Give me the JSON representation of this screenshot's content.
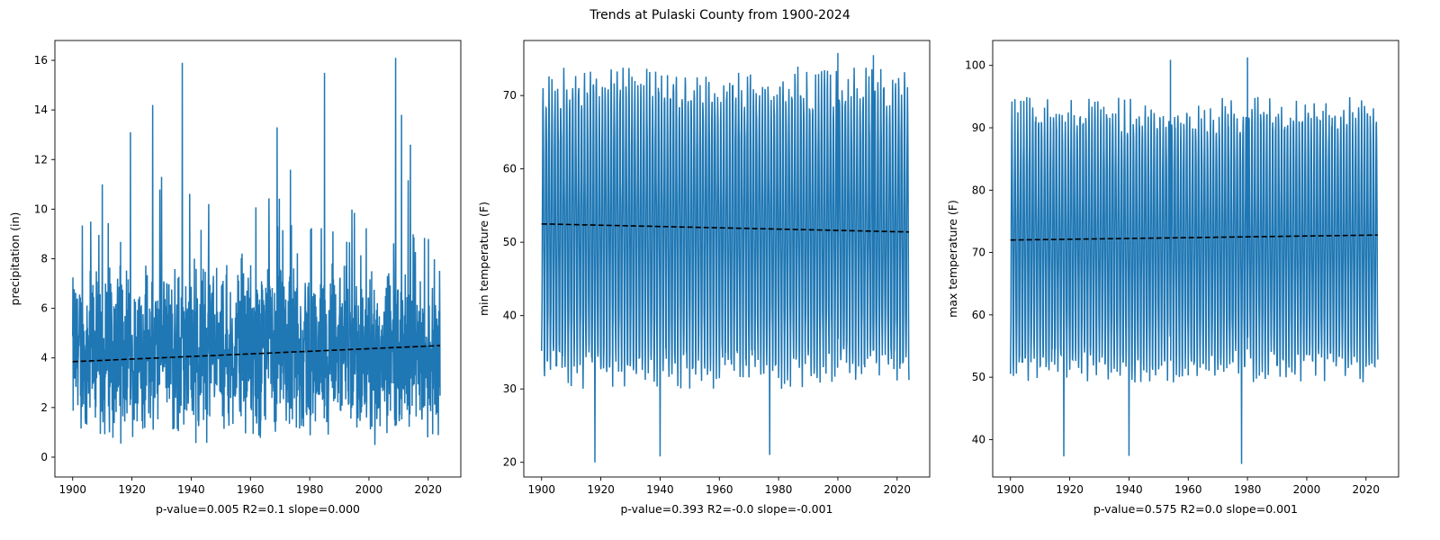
{
  "suptitle": "Trends at Pulaski County from 1900-2024",
  "line_color": "#1f77b4",
  "trend_color": "#000000",
  "chart_data": [
    {
      "type": "line",
      "ylabel": "precipitation (in)",
      "xlabel": "p-value=0.005   R2=0.1   slope=0.000",
      "xlim": [
        1894,
        2031
      ],
      "ylim": [
        -0.8,
        16.8
      ],
      "xticks": [
        1900,
        1920,
        1940,
        1960,
        1980,
        2000,
        2020
      ],
      "yticks": [
        0,
        2,
        4,
        6,
        8,
        10,
        12,
        14,
        16
      ],
      "series": [
        {
          "x_start": 1900,
          "x_end": 2024,
          "mean": 4.2,
          "sd": 2.4,
          "min": 0.0,
          "max": 16.1
        }
      ],
      "trend": {
        "x": [
          1900,
          2024
        ],
        "y": [
          3.85,
          4.5
        ]
      },
      "spikes": [
        [
          1919.5,
          13.1
        ],
        [
          1927,
          14.2
        ],
        [
          1937,
          15.9
        ],
        [
          1985,
          15.5
        ],
        [
          2009,
          16.1
        ],
        [
          2011,
          13.8
        ],
        [
          1969,
          13.3
        ],
        [
          1910,
          11.0
        ],
        [
          1930,
          11.3
        ],
        [
          2014,
          12.6
        ]
      ]
    },
    {
      "type": "line",
      "ylabel": "min temperature (F)",
      "xlabel": "p-value=0.393   R2=-0.0   slope=-0.001",
      "xlim": [
        1894,
        2031
      ],
      "ylim": [
        18,
        77.5
      ],
      "xticks": [
        1900,
        1920,
        1940,
        1960,
        1980,
        2000,
        2020
      ],
      "yticks": [
        20,
        30,
        40,
        50,
        60,
        70
      ],
      "series": [
        {
          "x_start": 1900,
          "x_end": 2024,
          "mean": 52,
          "amp": 19,
          "min": 20,
          "max": 75.8
        }
      ],
      "trend": {
        "x": [
          1900,
          2024
        ],
        "y": [
          52.5,
          51.4
        ]
      },
      "spikes": [
        [
          1918,
          20.0
        ],
        [
          1940,
          20.8
        ],
        [
          1977,
          21.0
        ],
        [
          2000,
          75.8
        ],
        [
          2012,
          75.5
        ]
      ]
    },
    {
      "type": "line",
      "ylabel": "max temperature (F)",
      "xlabel": "p-value=0.575   R2=0.0   slope=0.001",
      "xlim": [
        1894,
        2031
      ],
      "ylim": [
        34,
        104
      ],
      "xticks": [
        1900,
        1920,
        1940,
        1960,
        1980,
        2000,
        2020
      ],
      "yticks": [
        40,
        50,
        60,
        70,
        80,
        90,
        100
      ],
      "series": [
        {
          "x_start": 1900,
          "x_end": 2024,
          "mean": 72,
          "amp": 20,
          "min": 36,
          "max": 101.3
        }
      ],
      "trend": {
        "x": [
          1900,
          2024
        ],
        "y": [
          72.0,
          72.8
        ]
      },
      "spikes": [
        [
          1954,
          100.9
        ],
        [
          1980,
          101.3
        ],
        [
          1978,
          36.1
        ],
        [
          1918,
          37.3
        ],
        [
          1940,
          37.4
        ]
      ]
    }
  ]
}
